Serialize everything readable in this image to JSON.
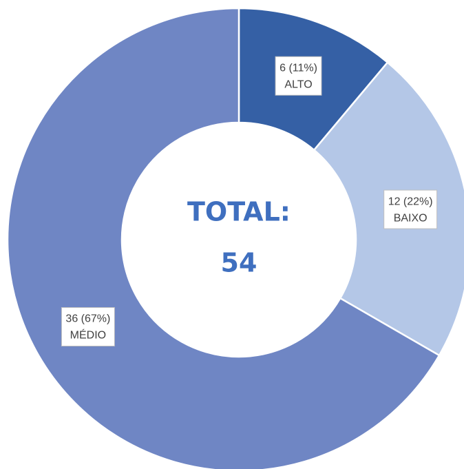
{
  "chart_data": {
    "type": "donut",
    "categories": [
      "ALTO",
      "BAIXO",
      "MÉDIO"
    ],
    "values": [
      6,
      12,
      36
    ],
    "value_labels": [
      "6 (11%)",
      "12 (22%)",
      "36 (67%)"
    ],
    "colors": [
      "#3560a5",
      "#b4c7e7",
      "#6f86c4"
    ],
    "center_label": "TOTAL:",
    "total": 54
  }
}
